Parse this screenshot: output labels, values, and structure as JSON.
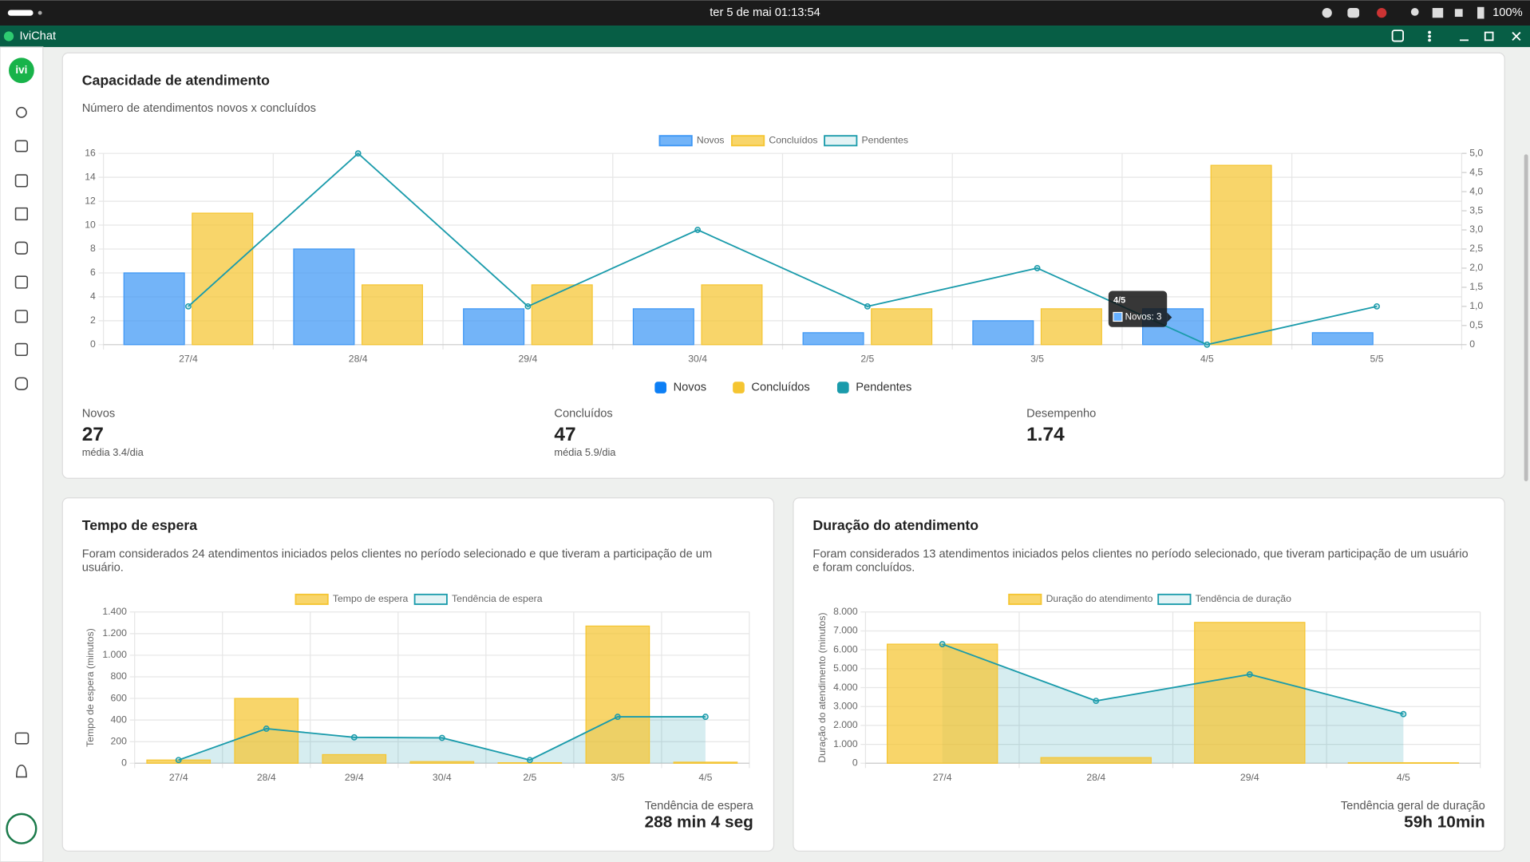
{
  "status_bar": {
    "clock": "ter 5 de mai  01:13:54",
    "battery": "100%"
  },
  "app": {
    "title": "IviChat",
    "logo": "ivi"
  },
  "cards": [
    {
      "title": "Capacidade de atendimento",
      "description": [
        "Número de atendimentos novos x concluídos"
      ],
      "stats": [
        {
          "label": "Novos",
          "value": 27,
          "note": "média 3.4/dia"
        },
        {
          "label": "Concluídos",
          "value": 47,
          "note": "média 5.9/dia"
        },
        {
          "label": "Desempenho",
          "value": 1.74
        }
      ],
      "tooltip": {
        "title": "4/5",
        "label": "Novos: 3"
      }
    },
    {
      "title": "Tempo de espera",
      "description": [
        "Foram considerados 24 atendimentos iniciados pelos clientes no período selecionado e que tiveram a participação de um",
        "usuário."
      ],
      "footer": {
        "label": "Tendência de espera",
        "value": "288 min 4 seg"
      }
    },
    {
      "title": "Duração do atendimento",
      "description": [
        "Foram considerados 13 atendimentos iniciados pelos clientes no período selecionado, que tiveram participação de um usuário",
        "e foram concluídos."
      ],
      "footer": {
        "label": "Tendência geral de duração",
        "value": "59h 10min"
      }
    }
  ],
  "chart_data": [
    {
      "type": "bar",
      "legends": [
        "top",
        "bottom"
      ],
      "grid": true,
      "categories": [
        "27/4",
        "28/4",
        "29/4",
        "30/4",
        "2/5",
        "3/5",
        "4/5",
        "5/5"
      ],
      "series": [
        {
          "name": "Novos",
          "type": "bar",
          "color": "#3d97f5",
          "values": [
            6,
            8,
            3,
            3,
            1,
            2,
            3,
            1
          ]
        },
        {
          "name": "Concluídos",
          "type": "bar",
          "color": "#f5c531",
          "values": [
            11,
            5,
            5,
            5,
            3,
            3,
            15,
            0
          ]
        },
        {
          "name": "Pendentes",
          "type": "line",
          "color": "#1a9bab",
          "axis": "y2",
          "values": [
            1,
            5,
            1,
            3,
            1,
            2,
            0,
            1
          ]
        }
      ],
      "ylim": [
        0,
        16
      ],
      "yticks": [
        0,
        2,
        4,
        6,
        8,
        10,
        12,
        14,
        16
      ],
      "y2lim": [
        0,
        5
      ],
      "y2ticks": [
        0,
        {
          "value": 0.5,
          "label": "0,5"
        },
        {
          "value": 1,
          "label": "1,0"
        },
        {
          "value": 1.5,
          "label": "1,5"
        },
        {
          "value": 2,
          "label": "2,0"
        },
        {
          "value": 2.5,
          "label": "2,5"
        },
        {
          "value": 3,
          "label": "3,0"
        },
        {
          "value": 3.5,
          "label": "3,5"
        },
        {
          "value": 4,
          "label": "4,0"
        },
        {
          "value": 4.5,
          "label": "4,5"
        },
        {
          "value": 5,
          "label": "5,0"
        }
      ]
    },
    {
      "type": "bar",
      "legends": [
        "top"
      ],
      "grid": true,
      "ylabel": "Tempo de espera (minutos)",
      "categories": [
        "27/4",
        "28/4",
        "29/4",
        "30/4",
        "2/5",
        "3/5",
        "4/5"
      ],
      "series": [
        {
          "name": "Tempo de espera",
          "type": "bar",
          "color": "#f5c531",
          "values": [
            30,
            600,
            80,
            15,
            5,
            1270,
            10
          ]
        },
        {
          "name": "Tendência de espera",
          "type": "line",
          "fill": true,
          "color": "#1a9bab",
          "values": [
            30,
            320,
            240,
            235,
            30,
            430,
            430
          ]
        }
      ],
      "ylim": [
        0,
        1400
      ],
      "yticks": [
        0,
        200,
        400,
        600,
        800,
        {
          "value": 1000,
          "label": "1.000"
        },
        {
          "value": 1200,
          "label": "1.200"
        },
        {
          "value": 1400,
          "label": "1.400"
        }
      ]
    },
    {
      "type": "bar",
      "legends": [
        "top"
      ],
      "grid": true,
      "ylabel": "Duração do atendimento (minutos)",
      "categories": [
        "27/4",
        "28/4",
        "29/4",
        "4/5"
      ],
      "series": [
        {
          "name": "Duração do atendimento",
          "type": "bar",
          "color": "#f5c531",
          "values": [
            6300,
            300,
            7450,
            30
          ]
        },
        {
          "name": "Tendência de duração",
          "type": "line",
          "fill": true,
          "color": "#1a9bab",
          "values": [
            6300,
            3300,
            4700,
            2600
          ]
        }
      ],
      "ylim": [
        0,
        8000
      ],
      "yticks": [
        0,
        {
          "value": 1000,
          "label": "1.000"
        },
        {
          "value": 2000,
          "label": "2.000"
        },
        {
          "value": 3000,
          "label": "3.000"
        },
        {
          "value": 4000,
          "label": "4.000"
        },
        {
          "value": 5000,
          "label": "5.000"
        },
        {
          "value": 6000,
          "label": "6.000"
        },
        {
          "value": 7000,
          "label": "7.000"
        },
        {
          "value": 8000,
          "label": "8.000"
        }
      ]
    }
  ]
}
